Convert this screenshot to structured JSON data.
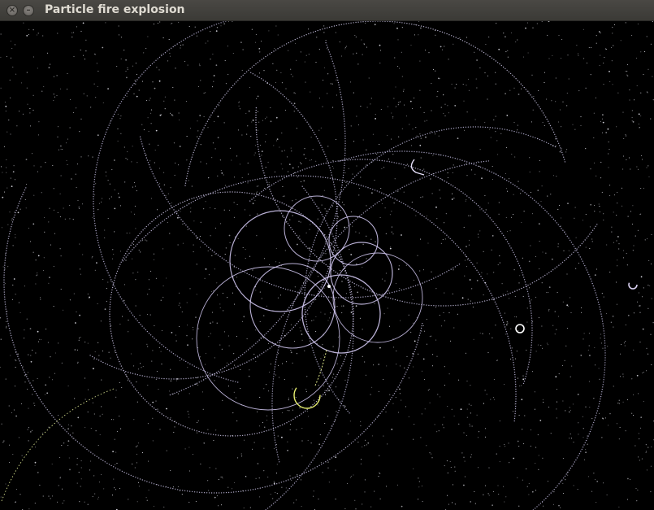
{
  "window": {
    "title": "Particle fire explosion",
    "close_glyph": "×",
    "minimize_glyph": "–"
  },
  "icons": {
    "close": "close-icon",
    "minimize": "minimize-icon"
  },
  "colors": {
    "titlebar": "#3f3e3a",
    "title_text": "#dfdbd2",
    "background": "#000000",
    "particle_white": "#e8e8f0",
    "particle_lavender": "#c8b8f0",
    "particle_yellow": "#e6f07a"
  }
}
